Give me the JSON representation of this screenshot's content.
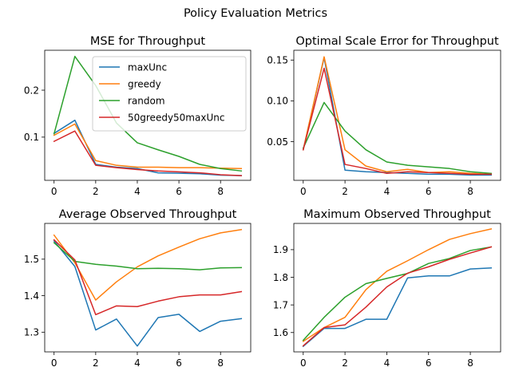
{
  "figure": {
    "suptitle": "Policy Evaluation Metrics"
  },
  "colors": {
    "maxUnc": "#1f77b4",
    "greedy": "#ff7f0e",
    "random": "#2ca02c",
    "50greedy50maxUnc": "#d62728"
  },
  "chart_data": [
    {
      "type": "line",
      "title": "MSE for Throughput",
      "xlabel": "",
      "ylabel": "",
      "x": [
        0,
        1,
        2,
        3,
        4,
        5,
        6,
        7,
        8,
        9
      ],
      "xlim": [
        -0.45,
        9.45
      ],
      "ylim": [
        0.008,
        0.285
      ],
      "xticks": [
        0,
        2,
        4,
        6,
        8
      ],
      "yticks": [
        0.1,
        0.2
      ],
      "ytick_labels": [
        "0.1",
        "0.2"
      ],
      "grid": false,
      "legend": "upper right",
      "series": [
        {
          "name": "maxUnc",
          "values": [
            0.108,
            0.136,
            0.042,
            0.036,
            0.033,
            0.024,
            0.023,
            0.022,
            0.019,
            0.018
          ]
        },
        {
          "name": "greedy",
          "values": [
            0.104,
            0.128,
            0.05,
            0.04,
            0.036,
            0.036,
            0.035,
            0.035,
            0.034,
            0.033
          ]
        },
        {
          "name": "random",
          "values": [
            0.107,
            0.272,
            0.21,
            0.13,
            0.088,
            0.073,
            0.059,
            0.042,
            0.033,
            0.028
          ]
        },
        {
          "name": "50greedy50maxUnc",
          "values": [
            0.091,
            0.113,
            0.04,
            0.035,
            0.031,
            0.028,
            0.026,
            0.024,
            0.02,
            0.018
          ]
        }
      ]
    },
    {
      "type": "line",
      "title": "Optimal Scale Error for Throughput",
      "xlabel": "",
      "ylabel": "",
      "x": [
        0,
        1,
        2,
        3,
        4,
        5,
        6,
        7,
        8,
        9
      ],
      "xlim": [
        -0.45,
        9.45
      ],
      "ylim": [
        0.0025,
        0.162
      ],
      "xticks": [
        0,
        2,
        4,
        6,
        8
      ],
      "yticks": [
        0.05,
        0.1,
        0.15
      ],
      "ytick_labels": [
        "0.05",
        "0.10",
        "0.15"
      ],
      "grid": false,
      "series": [
        {
          "name": "maxUnc",
          "values": [
            0.04,
            0.153,
            0.015,
            0.013,
            0.012,
            0.011,
            0.01,
            0.01,
            0.009,
            0.009
          ]
        },
        {
          "name": "greedy",
          "values": [
            0.04,
            0.154,
            0.04,
            0.02,
            0.013,
            0.016,
            0.012,
            0.013,
            0.011,
            0.01
          ]
        },
        {
          "name": "random",
          "values": [
            0.042,
            0.098,
            0.063,
            0.04,
            0.025,
            0.021,
            0.019,
            0.017,
            0.013,
            0.011
          ]
        },
        {
          "name": "50greedy50maxUnc",
          "values": [
            0.04,
            0.14,
            0.022,
            0.017,
            0.011,
            0.013,
            0.012,
            0.011,
            0.01,
            0.01
          ]
        }
      ]
    },
    {
      "type": "line",
      "title": "Average Observed Throughput",
      "xlabel": "",
      "ylabel": "",
      "x": [
        0,
        1,
        2,
        3,
        4,
        5,
        6,
        7,
        8,
        9
      ],
      "xlim": [
        -0.45,
        9.45
      ],
      "ylim": [
        1.246,
        1.598
      ],
      "xticks": [
        0,
        2,
        4,
        6,
        8
      ],
      "yticks": [
        1.3,
        1.4,
        1.5
      ],
      "ytick_labels": [
        "1.3",
        "1.4",
        "1.5"
      ],
      "grid": false,
      "series": [
        {
          "name": "maxUnc",
          "values": [
            1.55,
            1.48,
            1.306,
            1.336,
            1.262,
            1.34,
            1.349,
            1.302,
            1.33,
            1.337
          ]
        },
        {
          "name": "greedy",
          "values": [
            1.566,
            1.49,
            1.388,
            1.438,
            1.479,
            1.509,
            1.533,
            1.556,
            1.572,
            1.581
          ]
        },
        {
          "name": "random",
          "values": [
            1.545,
            1.494,
            1.486,
            1.481,
            1.474,
            1.475,
            1.474,
            1.471,
            1.476,
            1.477
          ]
        },
        {
          "name": "50greedy50maxUnc",
          "values": [
            1.553,
            1.498,
            1.348,
            1.372,
            1.37,
            1.385,
            1.397,
            1.402,
            1.402,
            1.411
          ]
        }
      ]
    },
    {
      "type": "line",
      "title": "Maximum Observed Throughput",
      "xlabel": "",
      "ylabel": "",
      "x": [
        0,
        1,
        2,
        3,
        4,
        5,
        6,
        7,
        8,
        9
      ],
      "xlim": [
        -0.45,
        9.45
      ],
      "ylim": [
        1.53,
        1.995
      ],
      "xticks": [
        0,
        2,
        4,
        6,
        8
      ],
      "yticks": [
        1.6,
        1.7,
        1.8,
        1.9
      ],
      "ytick_labels": [
        "1.6",
        "1.7",
        "1.8",
        "1.9"
      ],
      "grid": false,
      "series": [
        {
          "name": "maxUnc",
          "values": [
            1.55,
            1.615,
            1.615,
            1.648,
            1.648,
            1.798,
            1.805,
            1.805,
            1.83,
            1.834
          ]
        },
        {
          "name": "greedy",
          "values": [
            1.568,
            1.618,
            1.655,
            1.755,
            1.822,
            1.86,
            1.9,
            1.937,
            1.958,
            1.975
          ]
        },
        {
          "name": "random",
          "values": [
            1.572,
            1.655,
            1.728,
            1.777,
            1.796,
            1.814,
            1.85,
            1.868,
            1.897,
            1.91
          ]
        },
        {
          "name": "50greedy50maxUnc",
          "values": [
            1.552,
            1.618,
            1.628,
            1.692,
            1.765,
            1.815,
            1.838,
            1.865,
            1.888,
            1.91
          ]
        }
      ]
    }
  ]
}
